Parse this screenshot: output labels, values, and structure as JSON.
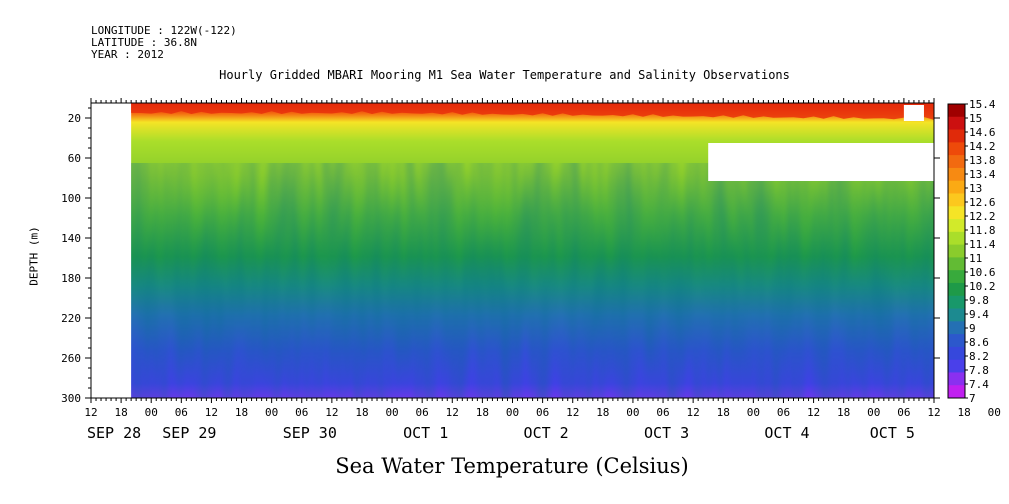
{
  "header": {
    "longitude": "LONGITUDE : 122W(-122)",
    "latitude": "LATITUDE : 36.8N",
    "year": "YEAR : 2012"
  },
  "chart_data": {
    "type": "heatmap",
    "title": "Hourly Gridded MBARI Mooring M1 Sea Water Temperature and Salinity Observations",
    "xlabel": "Sea Water Temperature (Celsius)",
    "ylabel": "DEPTH (m)",
    "x_hour_ticks": [
      "12",
      "18",
      "00",
      "06",
      "12",
      "18",
      "00",
      "06",
      "12",
      "18",
      "00",
      "06",
      "12",
      "18",
      "00",
      "06",
      "12",
      "18",
      "00",
      "06",
      "12",
      "18",
      "00",
      "06",
      "12",
      "18",
      "00",
      "06",
      "12",
      "18",
      "00",
      "06",
      "12"
    ],
    "x_day_labels": [
      "SEP 28",
      "SEP 29",
      "SEP 30",
      "OCT  1",
      "OCT  2",
      "OCT  3",
      "OCT  4",
      "OCT  5"
    ],
    "x_day_label_hours": [
      0,
      15,
      39,
      63,
      87,
      111,
      135,
      156
    ],
    "xlim_hours": [
      0,
      168
    ],
    "data_start_hour": 8,
    "y_ticks": [
      20,
      60,
      100,
      140,
      180,
      220,
      260,
      300
    ],
    "ylim": [
      300,
      5
    ],
    "colorbar_levels": [
      "15.4",
      "15",
      "14.6",
      "14.2",
      "13.8",
      "13.4",
      "13",
      "12.6",
      "12.2",
      "11.8",
      "11.4",
      "11",
      "10.6",
      "10.2",
      "9.8",
      "9.4",
      "9",
      "8.6",
      "8.2",
      "7.8",
      "7.4",
      "7"
    ],
    "colorbar_colors": [
      "#a00000",
      "#cc1010",
      "#e02a0a",
      "#ee4a0a",
      "#f26a10",
      "#f78a12",
      "#fbaa14",
      "#fcc81e",
      "#f5e426",
      "#d2ea2a",
      "#aade2a",
      "#8acc2c",
      "#62bb34",
      "#38aa3c",
      "#1e9a48",
      "#18986a",
      "#1c8a90",
      "#2470b4",
      "#2c58cc",
      "#3648dc",
      "#4a40ea",
      "#8a30f0",
      "#c020f0"
    ],
    "missing_blocks_hours_depth": [
      {
        "x0": 123,
        "x1": 168,
        "y0": 45,
        "y1": 83
      },
      {
        "x0": 162,
        "x1": 166,
        "y0": 7,
        "y1": 23
      }
    ]
  }
}
